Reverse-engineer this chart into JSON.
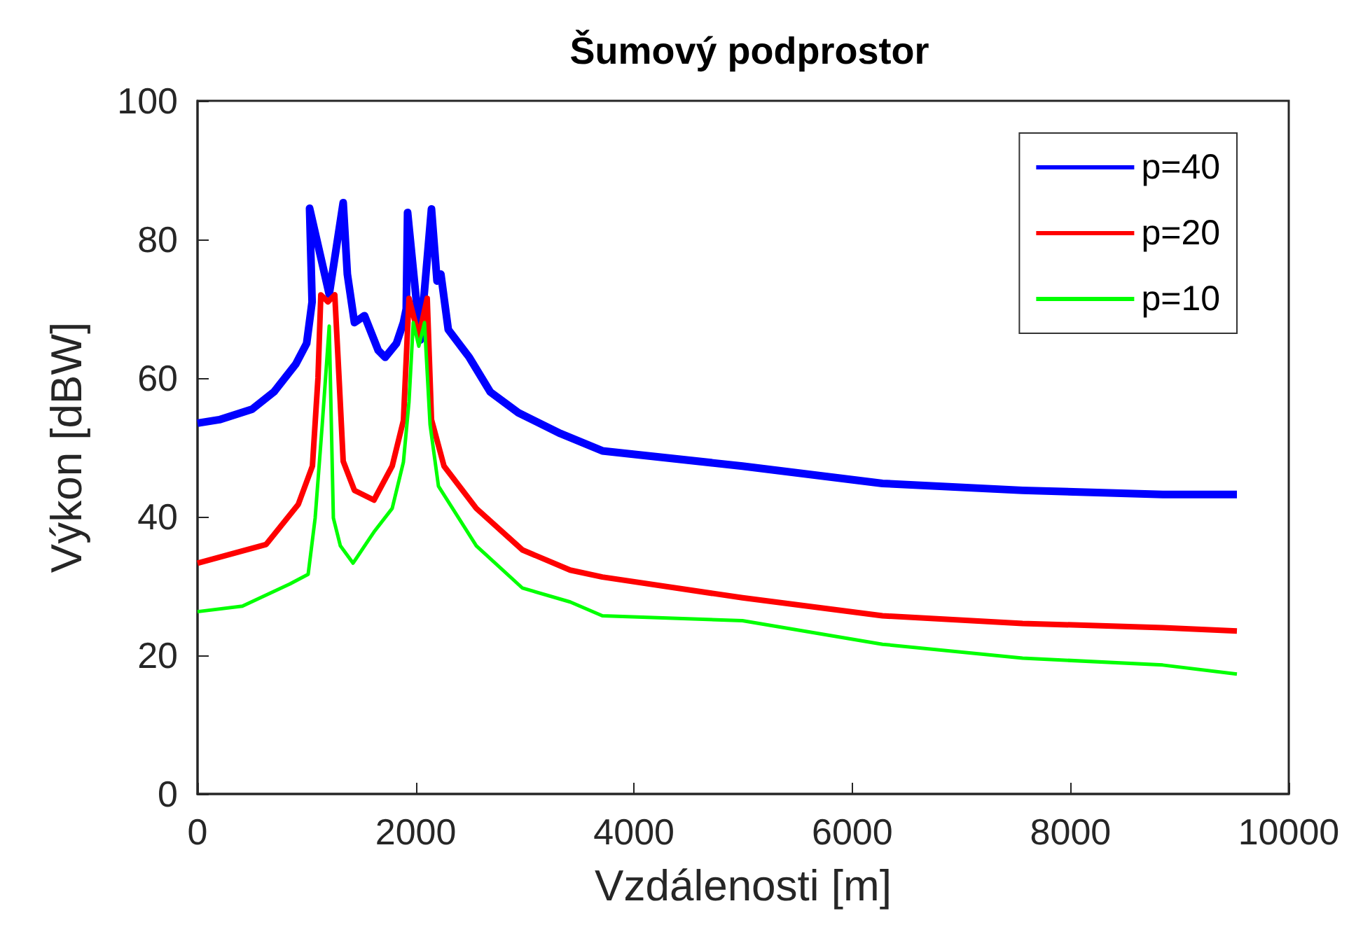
{
  "chart_data": {
    "type": "line",
    "title": "Šumový podprostor",
    "xlabel": "Vzdálenosti [m]",
    "ylabel": "Výkon [dBW]",
    "xlim": [
      0,
      10000
    ],
    "xticks": [
      0,
      2000,
      4000,
      6000,
      8000,
      10000
    ],
    "ylim": [
      0,
      100
    ],
    "yticks": [
      0,
      20,
      40,
      60,
      80,
      100
    ],
    "grid": false,
    "legend": "top right",
    "marker": "none",
    "line_style": "solid",
    "series": [
      {
        "name": "p=40",
        "color": "#0000ff",
        "x": [
          0,
          200,
          500,
          700,
          900,
          1000,
          1050,
          1027,
          1207,
          1335,
          1373,
          1438,
          1530,
          1656,
          1720,
          1823,
          1887,
          1913,
          1925,
          2041,
          2144,
          2195,
          2230,
          2298,
          2490,
          2683,
          2940,
          3325,
          3710,
          4994,
          6277,
          7561,
          8845,
          9525
        ],
        "values": [
          53.5,
          54,
          55.5,
          58,
          62,
          65,
          71,
          84.5,
          72.1,
          85.3,
          75,
          68,
          69,
          64,
          63,
          65,
          68,
          70,
          83.9,
          65.5,
          84.4,
          74,
          75,
          67,
          63,
          58,
          55,
          52,
          49.5,
          47.3,
          44.8,
          43.8,
          43.2,
          43.2
        ]
      },
      {
        "name": "p=20",
        "color": "#ff0000",
        "x": [
          0,
          629,
          924,
          1053,
          1104,
          1130,
          1195,
          1258,
          1297,
          1335,
          1438,
          1617,
          1784,
          1887,
          1938,
          2028,
          2105,
          2144,
          2259,
          2555,
          2978,
          3415,
          3710,
          4994,
          6277,
          7561,
          8845,
          9525
        ],
        "values": [
          33.3,
          36,
          41.8,
          47.3,
          60,
          72,
          71,
          72,
          60,
          48,
          43.8,
          42.4,
          47.3,
          53.9,
          71.5,
          66,
          71.5,
          54,
          47.3,
          41.2,
          35.2,
          32.3,
          31.3,
          28.3,
          25.7,
          24.6,
          24,
          23.5
        ]
      },
      {
        "name": "p=10",
        "color": "#00ff00",
        "x": [
          0,
          411,
          847,
          1014,
          1078,
          1143,
          1207,
          1245,
          1309,
          1425,
          1617,
          1784,
          1887,
          1938,
          1977,
          2028,
          2080,
          2131,
          2208,
          2555,
          2978,
          3415,
          3710,
          4994,
          6277,
          7561,
          8845,
          9525
        ],
        "values": [
          26.3,
          27.1,
          30.3,
          31.7,
          39.8,
          53.3,
          67.5,
          39.8,
          35.8,
          33.3,
          37.8,
          41.2,
          47.9,
          56.6,
          68,
          64.6,
          68,
          53.3,
          44.4,
          35.8,
          29.7,
          27.7,
          25.7,
          25,
          21.6,
          19.6,
          18.6,
          17.3
        ]
      }
    ]
  }
}
